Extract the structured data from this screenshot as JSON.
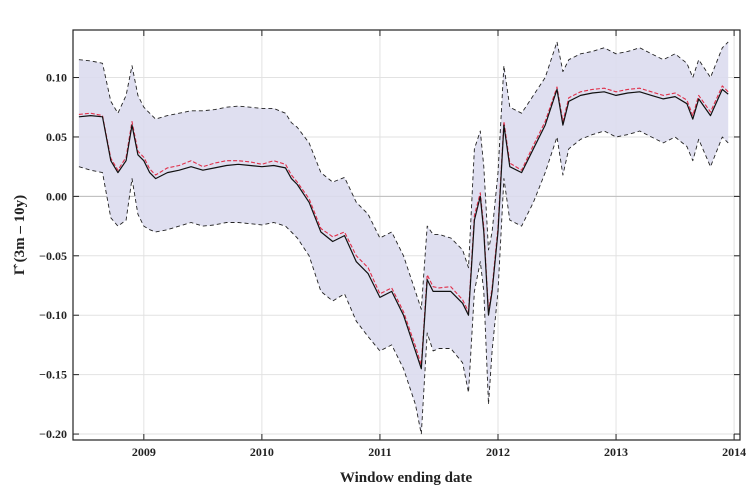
{
  "chart_data": {
    "type": "line",
    "xlabel": "Window ending date",
    "ylabel": "Γ̂ (3m – 10y)",
    "x_ticks": [
      2009,
      2010,
      2011,
      2012,
      2013,
      2014
    ],
    "y_ticks": [
      "−0.20",
      "−0.15",
      "−0.10",
      "−0.05",
      "0.00",
      "0.05",
      "0.10"
    ],
    "y_tick_values": [
      -0.2,
      -0.15,
      -0.1,
      -0.05,
      0,
      0.05,
      0.1
    ],
    "xlim": [
      2008.4,
      2014.05
    ],
    "ylim": [
      -0.205,
      0.14
    ],
    "grid": true,
    "zero_line": true,
    "colors": {
      "band_fill": "#dcdcee",
      "band_edge": "#222222",
      "estimate": "#111111",
      "estimate_alt": "#e0304a",
      "grid": "#e2e2e2",
      "zero_line": "#bdbdbd"
    },
    "series": [
      {
        "style": "solid-black",
        "x": [
          2008.45,
          2008.55,
          2008.65,
          2008.72,
          2008.78,
          2008.85,
          2008.9,
          2008.95,
          2009.0,
          2009.05,
          2009.1,
          2009.2,
          2009.3,
          2009.4,
          2009.5,
          2009.6,
          2009.7,
          2009.8,
          2009.9,
          2010.0,
          2010.1,
          2010.2,
          2010.25,
          2010.3,
          2010.4,
          2010.5,
          2010.6,
          2010.7,
          2010.8,
          2010.9,
          2011.0,
          2011.1,
          2011.2,
          2011.3,
          2011.35,
          2011.4,
          2011.45,
          2011.5,
          2011.6,
          2011.7,
          2011.75,
          2011.8,
          2011.85,
          2011.88,
          2011.92,
          2011.95,
          2012.0,
          2012.05,
          2012.1,
          2012.2,
          2012.3,
          2012.4,
          2012.5,
          2012.55,
          2012.6,
          2012.7,
          2012.8,
          2012.9,
          2013.0,
          2013.1,
          2013.2,
          2013.3,
          2013.4,
          2013.5,
          2013.6,
          2013.65,
          2013.7,
          2013.8,
          2013.9,
          2013.95
        ],
        "y": [
          0.067,
          0.068,
          0.067,
          0.03,
          0.02,
          0.03,
          0.06,
          0.035,
          0.03,
          0.02,
          0.015,
          0.02,
          0.022,
          0.025,
          0.022,
          0.024,
          0.026,
          0.027,
          0.026,
          0.025,
          0.026,
          0.024,
          0.015,
          0.01,
          -0.005,
          -0.03,
          -0.038,
          -0.033,
          -0.055,
          -0.065,
          -0.085,
          -0.08,
          -0.1,
          -0.13,
          -0.145,
          -0.07,
          -0.08,
          -0.08,
          -0.08,
          -0.09,
          -0.1,
          -0.02,
          0.0,
          -0.03,
          -0.1,
          -0.08,
          -0.03,
          0.06,
          0.025,
          0.02,
          0.04,
          0.06,
          0.09,
          0.06,
          0.08,
          0.085,
          0.087,
          0.088,
          0.085,
          0.087,
          0.088,
          0.085,
          0.082,
          0.084,
          0.078,
          0.065,
          0.082,
          0.068,
          0.09,
          0.086
        ]
      },
      {
        "style": "dashed-red",
        "x": [
          2008.45,
          2008.55,
          2008.65,
          2008.72,
          2008.78,
          2008.85,
          2008.9,
          2008.95,
          2009.0,
          2009.05,
          2009.1,
          2009.2,
          2009.3,
          2009.4,
          2009.5,
          2009.6,
          2009.7,
          2009.8,
          2009.9,
          2010.0,
          2010.1,
          2010.2,
          2010.25,
          2010.3,
          2010.4,
          2010.5,
          2010.6,
          2010.7,
          2010.8,
          2010.9,
          2011.0,
          2011.1,
          2011.2,
          2011.3,
          2011.35,
          2011.4,
          2011.45,
          2011.5,
          2011.6,
          2011.7,
          2011.75,
          2011.8,
          2011.85,
          2011.88,
          2011.92,
          2011.95,
          2012.0,
          2012.05,
          2012.1,
          2012.2,
          2012.3,
          2012.4,
          2012.5,
          2012.55,
          2012.6,
          2012.7,
          2012.8,
          2012.9,
          2013.0,
          2013.1,
          2013.2,
          2013.3,
          2013.4,
          2013.5,
          2013.6,
          2013.65,
          2013.7,
          2013.8,
          2013.9,
          2013.95
        ],
        "y": [
          0.069,
          0.07,
          0.068,
          0.032,
          0.022,
          0.033,
          0.063,
          0.038,
          0.033,
          0.023,
          0.018,
          0.024,
          0.026,
          0.03,
          0.025,
          0.028,
          0.03,
          0.03,
          0.029,
          0.027,
          0.03,
          0.027,
          0.018,
          0.012,
          -0.002,
          -0.027,
          -0.034,
          -0.03,
          -0.05,
          -0.06,
          -0.082,
          -0.077,
          -0.097,
          -0.126,
          -0.142,
          -0.066,
          -0.076,
          -0.077,
          -0.076,
          -0.087,
          -0.097,
          -0.016,
          0.003,
          -0.026,
          -0.097,
          -0.077,
          -0.026,
          0.063,
          0.028,
          0.022,
          0.043,
          0.063,
          0.092,
          0.063,
          0.083,
          0.088,
          0.09,
          0.091,
          0.088,
          0.09,
          0.091,
          0.088,
          0.085,
          0.087,
          0.081,
          0.068,
          0.085,
          0.071,
          0.093,
          0.088
        ]
      },
      {
        "style": "dashed-upper",
        "x": [
          2008.45,
          2008.55,
          2008.65,
          2008.72,
          2008.78,
          2008.85,
          2008.9,
          2008.95,
          2009.0,
          2009.05,
          2009.1,
          2009.2,
          2009.3,
          2009.4,
          2009.5,
          2009.6,
          2009.7,
          2009.8,
          2009.9,
          2010.0,
          2010.1,
          2010.2,
          2010.25,
          2010.3,
          2010.4,
          2010.5,
          2010.6,
          2010.7,
          2010.8,
          2010.9,
          2011.0,
          2011.1,
          2011.2,
          2011.3,
          2011.35,
          2011.4,
          2011.45,
          2011.5,
          2011.6,
          2011.7,
          2011.75,
          2011.8,
          2011.85,
          2011.88,
          2011.92,
          2011.95,
          2012.0,
          2012.05,
          2012.1,
          2012.2,
          2012.3,
          2012.4,
          2012.5,
          2012.55,
          2012.6,
          2012.7,
          2012.8,
          2012.9,
          2013.0,
          2013.1,
          2013.2,
          2013.3,
          2013.4,
          2013.5,
          2013.6,
          2013.65,
          2013.7,
          2013.8,
          2013.9,
          2013.95
        ],
        "y": [
          0.115,
          0.114,
          0.112,
          0.08,
          0.07,
          0.085,
          0.11,
          0.085,
          0.075,
          0.07,
          0.065,
          0.068,
          0.07,
          0.072,
          0.072,
          0.073,
          0.075,
          0.076,
          0.075,
          0.074,
          0.074,
          0.07,
          0.062,
          0.058,
          0.045,
          0.02,
          0.012,
          0.016,
          -0.005,
          -0.015,
          -0.035,
          -0.03,
          -0.05,
          -0.08,
          -0.095,
          -0.025,
          -0.032,
          -0.032,
          -0.035,
          -0.045,
          -0.06,
          0.04,
          0.055,
          0.025,
          -0.045,
          -0.03,
          0.02,
          0.11,
          0.075,
          0.07,
          0.085,
          0.1,
          0.13,
          0.105,
          0.115,
          0.12,
          0.122,
          0.125,
          0.12,
          0.122,
          0.125,
          0.12,
          0.115,
          0.12,
          0.112,
          0.1,
          0.115,
          0.1,
          0.125,
          0.13
        ]
      },
      {
        "style": "dashed-lower",
        "x": [
          2008.45,
          2008.55,
          2008.65,
          2008.72,
          2008.78,
          2008.85,
          2008.9,
          2008.95,
          2009.0,
          2009.05,
          2009.1,
          2009.2,
          2009.3,
          2009.4,
          2009.5,
          2009.6,
          2009.7,
          2009.8,
          2009.9,
          2010.0,
          2010.1,
          2010.2,
          2010.25,
          2010.3,
          2010.4,
          2010.5,
          2010.6,
          2010.7,
          2010.8,
          2010.9,
          2011.0,
          2011.1,
          2011.2,
          2011.3,
          2011.35,
          2011.4,
          2011.45,
          2011.5,
          2011.6,
          2011.7,
          2011.75,
          2011.8,
          2011.85,
          2011.88,
          2011.92,
          2011.95,
          2012.0,
          2012.05,
          2012.1,
          2012.2,
          2012.3,
          2012.4,
          2012.5,
          2012.55,
          2012.6,
          2012.7,
          2012.8,
          2012.9,
          2013.0,
          2013.1,
          2013.2,
          2013.3,
          2013.4,
          2013.5,
          2013.6,
          2013.65,
          2013.7,
          2013.8,
          2013.9,
          2013.95
        ],
        "y": [
          0.025,
          0.022,
          0.02,
          -0.018,
          -0.025,
          -0.02,
          0.015,
          -0.015,
          -0.025,
          -0.028,
          -0.03,
          -0.028,
          -0.025,
          -0.022,
          -0.025,
          -0.024,
          -0.022,
          -0.022,
          -0.023,
          -0.024,
          -0.022,
          -0.025,
          -0.03,
          -0.035,
          -0.05,
          -0.08,
          -0.088,
          -0.082,
          -0.105,
          -0.118,
          -0.13,
          -0.125,
          -0.145,
          -0.175,
          -0.2,
          -0.115,
          -0.13,
          -0.128,
          -0.128,
          -0.14,
          -0.165,
          -0.08,
          -0.055,
          -0.08,
          -0.175,
          -0.13,
          -0.08,
          0.015,
          -0.02,
          -0.025,
          -0.005,
          0.02,
          0.05,
          0.018,
          0.04,
          0.048,
          0.052,
          0.055,
          0.05,
          0.052,
          0.055,
          0.05,
          0.045,
          0.05,
          0.042,
          0.03,
          0.048,
          0.025,
          0.05,
          0.045
        ]
      }
    ]
  }
}
